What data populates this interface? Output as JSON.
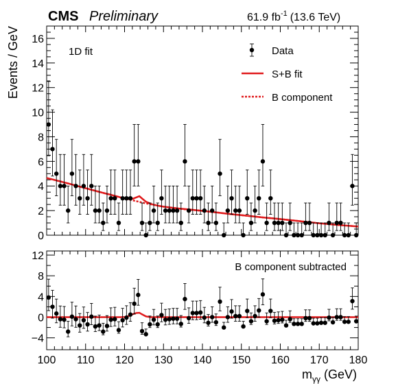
{
  "header": {
    "experiment": "CMS",
    "status": "Preliminary",
    "lumi_value": "61.9 fb",
    "lumi_exp": "-1",
    "energy": "(13.6 TeV)"
  },
  "chart_data": [
    {
      "panel": "main",
      "type": "scatter",
      "annotation": "1D fit",
      "ylabel": "Events / GeV",
      "xlim": [
        100,
        180
      ],
      "ylim": [
        0,
        17
      ],
      "y_ticks": [
        0,
        2,
        4,
        6,
        8,
        10,
        12,
        14,
        16
      ],
      "legend": {
        "placement": "top-right",
        "entries": [
          {
            "label": "Data",
            "style": "marker"
          },
          {
            "label": "S+B fit",
            "style": "solid",
            "color": "#e0191b"
          },
          {
            "label": "B component",
            "style": "dotted",
            "color": "#e0191b"
          }
        ]
      },
      "data": {
        "x": [
          100.5,
          101.5,
          102.5,
          103.5,
          104.5,
          105.5,
          106.5,
          107.5,
          108.5,
          109.5,
          110.5,
          111.5,
          112.5,
          113.5,
          114.5,
          115.5,
          116.5,
          117.5,
          118.5,
          119.5,
          120.5,
          121.5,
          122.5,
          123.5,
          124.5,
          125.5,
          126.5,
          127.5,
          128.5,
          129.5,
          130.5,
          131.5,
          132.5,
          133.5,
          134.5,
          135.5,
          136.5,
          137.5,
          138.5,
          139.5,
          140.5,
          141.5,
          142.5,
          143.5,
          144.5,
          145.5,
          146.5,
          147.5,
          148.5,
          149.5,
          150.5,
          151.5,
          152.5,
          153.5,
          154.5,
          155.5,
          156.5,
          157.5,
          158.5,
          159.5,
          160.5,
          161.5,
          162.5,
          163.5,
          164.5,
          165.5,
          166.5,
          167.5,
          168.5,
          169.5,
          170.5,
          171.5,
          172.5,
          173.5,
          174.5,
          175.5,
          176.5,
          177.5,
          178.5,
          179.5
        ],
        "y": [
          9,
          7,
          5,
          4,
          4,
          2,
          5,
          4,
          3,
          4,
          3,
          4,
          2,
          2,
          1,
          2,
          3,
          3,
          1,
          3,
          3,
          3,
          6,
          6,
          1,
          0,
          1,
          2,
          1,
          3,
          2,
          2,
          2,
          2,
          1,
          6,
          2,
          3,
          3,
          3,
          2,
          1,
          2,
          1,
          5,
          0,
          2,
          3,
          2,
          2,
          0,
          3,
          1,
          2,
          3,
          6,
          1,
          3,
          1,
          1,
          1,
          0,
          1,
          0,
          0,
          0,
          1,
          1,
          0,
          0,
          0,
          0,
          1,
          0,
          1,
          1,
          0,
          0,
          4,
          0
        ]
      },
      "fit_sb": {
        "x": [
          100,
          102,
          104,
          106,
          108,
          110,
          112,
          114,
          116,
          118,
          120,
          121,
          122,
          123,
          123.8,
          124.5,
          125.5,
          127,
          128.5,
          130,
          132,
          134,
          136,
          138,
          140,
          142,
          145,
          148,
          150,
          155,
          160,
          165,
          170,
          175,
          180
        ],
        "y": [
          4.65,
          4.5,
          4.33,
          4.17,
          3.99,
          3.82,
          3.65,
          3.48,
          3.32,
          3.16,
          2.99,
          2.93,
          2.95,
          3.07,
          3.17,
          2.98,
          2.72,
          2.52,
          2.4,
          2.32,
          2.24,
          2.17,
          2.11,
          2.05,
          1.98,
          1.91,
          1.8,
          1.69,
          1.63,
          1.46,
          1.31,
          1.14,
          0.97,
          0.83,
          0.7
        ]
      },
      "fit_b": {
        "x": [
          100,
          105,
          110,
          115,
          120,
          125,
          130,
          135,
          140,
          145,
          150,
          155,
          160,
          165,
          170,
          175,
          180
        ],
        "y": [
          4.65,
          4.25,
          3.82,
          3.4,
          2.99,
          2.62,
          2.32,
          2.12,
          1.98,
          1.8,
          1.63,
          1.46,
          1.31,
          1.14,
          0.97,
          0.83,
          0.7
        ]
      }
    },
    {
      "panel": "ratio",
      "type": "scatter",
      "annotation": "B component subtracted",
      "xlabel_base": "m",
      "xlabel_sub": "γγ",
      "xlabel_unit": " (GeV)",
      "xlim": [
        100,
        180
      ],
      "ylim": [
        -6.3,
        12.8
      ],
      "x_ticks": [
        100,
        110,
        120,
        130,
        140,
        150,
        160,
        170,
        180
      ],
      "y_ticks": [
        -4,
        0,
        4,
        8,
        12
      ],
      "y_minor_ticks": [
        -2,
        2,
        6,
        10
      ],
      "data": {
        "x": [
          100.5,
          101.5,
          102.5,
          103.5,
          104.5,
          105.5,
          106.5,
          107.5,
          108.5,
          109.5,
          110.5,
          111.5,
          112.5,
          113.5,
          114.5,
          115.5,
          116.5,
          117.5,
          118.5,
          119.5,
          120.5,
          121.5,
          122.5,
          123.5,
          124.5,
          125.5,
          126.5,
          127.5,
          128.5,
          129.5,
          130.5,
          131.5,
          132.5,
          133.5,
          134.5,
          135.5,
          136.5,
          137.5,
          138.5,
          139.5,
          140.5,
          141.5,
          142.5,
          143.5,
          144.5,
          145.5,
          146.5,
          147.5,
          148.5,
          149.5,
          150.5,
          151.5,
          152.5,
          153.5,
          154.5,
          155.5,
          156.5,
          157.5,
          158.5,
          159.5,
          160.5,
          161.5,
          162.5,
          163.5,
          164.5,
          165.5,
          166.5,
          167.5,
          168.5,
          169.5,
          170.5,
          171.5,
          172.5,
          173.5,
          174.5,
          175.5,
          176.5,
          177.5,
          178.5,
          179.5
        ],
        "y": [
          3.8,
          2.0,
          0.7,
          -0.4,
          -0.5,
          -2.8,
          0.1,
          -0.4,
          -1.6,
          -0.6,
          -1.4,
          0.1,
          -1.8,
          -1.6,
          -2.8,
          -1.7,
          -0.5,
          -0.4,
          -2.5,
          -0.6,
          -0.1,
          0.5,
          2.6,
          4.3,
          -2.7,
          -3.3,
          -1.4,
          -0.5,
          -1.4,
          0.4,
          -0.5,
          -0.4,
          -0.3,
          -0.3,
          -1.3,
          3.5,
          -0.2,
          0.8,
          0.8,
          0.9,
          -0.1,
          -1.1,
          0.0,
          -1.0,
          3.0,
          -2.0,
          -0.0,
          1.1,
          0.2,
          0.2,
          -1.8,
          1.2,
          -0.8,
          0.2,
          1.3,
          4.4,
          -0.8,
          1.2,
          -0.7,
          -0.6,
          -0.5,
          -1.6,
          -0.4,
          -1.3,
          -1.3,
          -1.3,
          -0.2,
          -0.2,
          -1.2,
          -1.2,
          -1.1,
          -1.1,
          -0.1,
          -1.0,
          0.0,
          0.0,
          -0.9,
          -0.9,
          3.1,
          -0.8
        ]
      },
      "fit": {
        "x": [
          100,
          119,
          120,
          121,
          122,
          123,
          123.8,
          124.5,
          125.5,
          126.5,
          127,
          180
        ],
        "y": [
          0,
          0,
          0.04,
          0.2,
          0.55,
          0.8,
          0.85,
          0.55,
          0.15,
          0.02,
          0,
          0
        ]
      }
    }
  ]
}
